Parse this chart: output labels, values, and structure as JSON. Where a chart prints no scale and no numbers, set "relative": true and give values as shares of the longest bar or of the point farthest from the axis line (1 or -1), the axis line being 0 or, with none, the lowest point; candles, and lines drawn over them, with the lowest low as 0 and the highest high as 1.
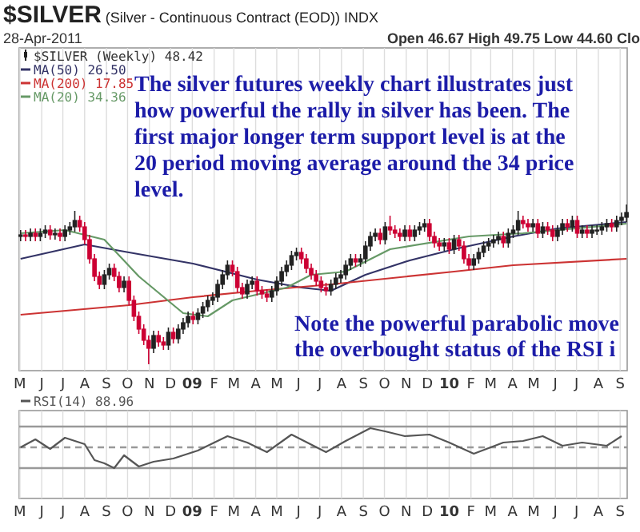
{
  "chart_data": [
    {
      "type": "candlestick",
      "title": "$SILVER (Silver - Continuous Contract (EOD)) INDX",
      "subtitle": "28-Apr-2011",
      "annotations": [
        "Open 46.67 High 49.75 Low 44.60 Clo",
        "The silver futures weekly chart illustrates just\nhow powerful the rally in silver has been. The\nfirst major longer term support level is at the\n20 period moving average around the 34 price\nlevel.",
        "Note the powerful parabolic move\nthe overbought status of the RSI i"
      ],
      "relative": true,
      "grid": "x",
      "legend": "top left",
      "xlim": [
        "2008-04-30",
        "2010-09-11"
      ],
      "xticks": [
        {
          "value": "2008-05-01",
          "label": "M"
        },
        {
          "value": "2008-06-01",
          "label": "J"
        },
        {
          "value": "2008-07-01",
          "label": "J"
        },
        {
          "value": "2008-08-01",
          "label": "A"
        },
        {
          "value": "2008-09-01",
          "label": "S"
        },
        {
          "value": "2008-10-01",
          "label": "O"
        },
        {
          "value": "2008-11-01",
          "label": "N"
        },
        {
          "value": "2008-12-01",
          "label": "D"
        },
        {
          "value": "2009-01-01",
          "label": "09"
        },
        {
          "value": "2009-02-01",
          "label": "F"
        },
        {
          "value": "2009-03-01",
          "label": "M"
        },
        {
          "value": "2009-04-01",
          "label": "A"
        },
        {
          "value": "2009-05-01",
          "label": "M"
        },
        {
          "value": "2009-06-01",
          "label": "J"
        },
        {
          "value": "2009-07-01",
          "label": "J"
        },
        {
          "value": "2009-08-01",
          "label": "A"
        },
        {
          "value": "2009-09-01",
          "label": "S"
        },
        {
          "value": "2009-10-01",
          "label": "O"
        },
        {
          "value": "2009-11-01",
          "label": "N"
        },
        {
          "value": "2009-12-01",
          "label": "D"
        },
        {
          "value": "2010-01-01",
          "label": "10"
        },
        {
          "value": "2010-02-01",
          "label": "F"
        },
        {
          "value": "2010-03-01",
          "label": "M"
        },
        {
          "value": "2010-04-01",
          "label": "A"
        },
        {
          "value": "2010-05-01",
          "label": "M"
        },
        {
          "value": "2010-06-01",
          "label": "J"
        },
        {
          "value": "2010-07-01",
          "label": "J"
        },
        {
          "value": "2010-08-01",
          "label": "A"
        },
        {
          "value": "2010-09-01",
          "label": "S"
        }
      ],
      "series": [
        {
          "type": "candlestick",
          "name": "$SILVER (Weekly) 48.42",
          "colors": [
            "#222222",
            "#cc0033",
            "#222222",
            "#cc0033",
            "#222222",
            "#222222",
            "#cc0033",
            "#222222",
            "#cc0033",
            "#222222",
            "#222222",
            "#222222",
            "#cc0033",
            "#cc0033",
            "#cc0033",
            "#cc0033",
            "#cc0033",
            "#222222",
            "#222222",
            "#cc0033",
            "#cc0033",
            "#222222",
            "#cc0033",
            "#cc0033",
            "#cc0033",
            "#cc0033",
            "#cc0033",
            "#222222",
            "#cc0033",
            "#cc0033",
            "#222222",
            "#cc0033",
            "#222222",
            "#222222",
            "#222222",
            "#cc0033",
            "#222222",
            "#222222",
            "#222222",
            "#222222",
            "#222222",
            "#222222",
            "#222222",
            "#cc0033",
            "#cc0033",
            "#cc0033",
            "#222222",
            "#222222",
            "#cc0033",
            "#cc0033",
            "#cc0033",
            "#222222",
            "#222222",
            "#222222",
            "#222222",
            "#222222",
            "#222222",
            "#cc0033",
            "#cc0033",
            "#cc0033",
            "#cc0033",
            "#cc0033",
            "#cc0033",
            "#222222",
            "#222222",
            "#222222",
            "#222222",
            "#222222",
            "#cc0033",
            "#222222",
            "#222222",
            "#222222",
            "#222222",
            "#cc0033",
            "#222222",
            "#cc0033",
            "#cc0033",
            "#cc0033",
            "#222222",
            "#cc0033",
            "#222222",
            "#222222",
            "#222222",
            "#cc0033",
            "#cc0033",
            "#cc0033",
            "#222222",
            "#cc0033",
            "#222222",
            "#cc0033",
            "#cc0033",
            "#cc0033",
            "#222222",
            "#222222",
            "#222222",
            "#222222",
            "#222222",
            "#222222",
            "#cc0033",
            "#222222",
            "#222222",
            "#222222",
            "#cc0033",
            "#cc0033",
            "#222222",
            "#cc0033",
            "#222222",
            "#cc0033",
            "#cc0033",
            "#222222",
            "#222222",
            "#cc0033",
            "#222222",
            "#cc0033",
            "#222222",
            "#cc0033",
            "#222222",
            "#222222",
            "#222222",
            "#222222",
            "#cc0033",
            "#222222",
            "#222222",
            "#222222"
          ],
          "x": [
            "2008-05-02",
            "2008-05-09",
            "2008-05-16",
            "2008-05-23",
            "2008-05-30",
            "2008-06-06",
            "2008-06-13",
            "2008-06-20",
            "2008-06-27",
            "2008-07-04",
            "2008-07-11",
            "2008-07-18",
            "2008-07-25",
            "2008-08-01",
            "2008-08-08",
            "2008-08-15",
            "2008-08-22",
            "2008-08-29",
            "2008-09-05",
            "2008-09-12",
            "2008-09-19",
            "2008-09-26",
            "2008-10-03",
            "2008-10-10",
            "2008-10-17",
            "2008-10-24",
            "2008-10-31",
            "2008-11-07",
            "2008-11-14",
            "2008-11-21",
            "2008-11-28",
            "2008-12-05",
            "2008-12-12",
            "2008-12-19",
            "2008-12-26",
            "2009-01-02",
            "2009-01-09",
            "2009-01-16",
            "2009-01-23",
            "2009-01-30",
            "2009-02-06",
            "2009-02-13",
            "2009-02-20",
            "2009-02-27",
            "2009-03-06",
            "2009-03-13",
            "2009-03-20",
            "2009-03-27",
            "2009-04-03",
            "2009-04-10",
            "2009-04-17",
            "2009-04-24",
            "2009-05-01",
            "2009-05-08",
            "2009-05-15",
            "2009-05-22",
            "2009-05-29",
            "2009-06-05",
            "2009-06-12",
            "2009-06-19",
            "2009-06-26",
            "2009-07-03",
            "2009-07-10",
            "2009-07-17",
            "2009-07-24",
            "2009-07-31",
            "2009-08-07",
            "2009-08-14",
            "2009-08-21",
            "2009-08-28",
            "2009-09-04",
            "2009-09-11",
            "2009-09-18",
            "2009-09-25",
            "2009-10-02",
            "2009-10-09",
            "2009-10-16",
            "2009-10-23",
            "2009-10-30",
            "2009-11-06",
            "2009-11-13",
            "2009-11-20",
            "2009-11-27",
            "2009-12-04",
            "2009-12-11",
            "2009-12-18",
            "2009-12-25",
            "2010-01-01",
            "2010-01-08",
            "2010-01-15",
            "2010-01-22",
            "2010-01-29",
            "2010-02-05",
            "2010-02-12",
            "2010-02-19",
            "2010-02-26",
            "2010-03-05",
            "2010-03-12",
            "2010-03-19",
            "2010-03-26",
            "2010-04-02",
            "2010-04-09",
            "2010-04-16",
            "2010-04-23",
            "2010-04-30",
            "2010-05-07",
            "2010-05-14",
            "2010-05-21",
            "2010-05-28",
            "2010-06-04",
            "2010-06-11",
            "2010-06-18",
            "2010-06-25",
            "2010-07-02",
            "2010-07-09",
            "2010-07-16",
            "2010-07-23",
            "2010-07-30",
            "2010-08-06",
            "2010-08-13",
            "2010-08-20",
            "2010-08-27",
            "2010-09-03",
            "2010-09-10"
          ],
          "ohlc": [
            [
              0.8,
              0.84,
              0.77,
              0.81
            ],
            [
              0.81,
              0.84,
              0.77,
              0.8
            ],
            [
              0.8,
              0.85,
              0.77,
              0.82
            ],
            [
              0.82,
              0.85,
              0.77,
              0.8
            ],
            [
              0.8,
              0.85,
              0.77,
              0.82
            ],
            [
              0.82,
              0.87,
              0.79,
              0.84
            ],
            [
              0.84,
              0.87,
              0.78,
              0.81
            ],
            [
              0.81,
              0.85,
              0.78,
              0.82
            ],
            [
              0.82,
              0.85,
              0.77,
              0.8
            ],
            [
              0.8,
              0.87,
              0.77,
              0.84
            ],
            [
              0.84,
              0.89,
              0.81,
              0.86
            ],
            [
              0.86,
              0.96,
              0.83,
              0.9
            ],
            [
              0.9,
              0.93,
              0.83,
              0.86
            ],
            [
              0.86,
              0.89,
              0.75,
              0.78
            ],
            [
              0.78,
              0.81,
              0.63,
              0.66
            ],
            [
              0.66,
              0.69,
              0.52,
              0.55
            ],
            [
              0.55,
              0.58,
              0.47,
              0.5
            ],
            [
              0.5,
              0.59,
              0.47,
              0.56
            ],
            [
              0.56,
              0.63,
              0.53,
              0.6
            ],
            [
              0.6,
              0.63,
              0.52,
              0.55
            ],
            [
              0.55,
              0.58,
              0.45,
              0.48
            ],
            [
              0.48,
              0.55,
              0.45,
              0.52
            ],
            [
              0.52,
              0.55,
              0.37,
              0.4
            ],
            [
              0.4,
              0.43,
              0.27,
              0.3
            ],
            [
              0.3,
              0.33,
              0.19,
              0.22
            ],
            [
              0.22,
              0.25,
              0.12,
              0.15
            ],
            [
              0.15,
              0.18,
              0,
              0.1
            ],
            [
              0.1,
              0.21,
              0.07,
              0.18
            ],
            [
              0.18,
              0.21,
              0.11,
              0.14
            ],
            [
              0.14,
              0.17,
              0.09,
              0.12
            ],
            [
              0.12,
              0.23,
              0.09,
              0.2
            ],
            [
              0.2,
              0.23,
              0.13,
              0.16
            ],
            [
              0.16,
              0.25,
              0.13,
              0.22
            ],
            [
              0.22,
              0.29,
              0.19,
              0.26
            ],
            [
              0.26,
              0.33,
              0.23,
              0.3
            ],
            [
              0.3,
              0.33,
              0.25,
              0.28
            ],
            [
              0.28,
              0.35,
              0.25,
              0.32
            ],
            [
              0.32,
              0.39,
              0.29,
              0.36
            ],
            [
              0.36,
              0.43,
              0.33,
              0.4
            ],
            [
              0.4,
              0.45,
              0.37,
              0.42
            ],
            [
              0.42,
              0.53,
              0.39,
              0.5
            ],
            [
              0.5,
              0.59,
              0.47,
              0.56
            ],
            [
              0.56,
              0.65,
              0.53,
              0.62
            ],
            [
              0.62,
              0.65,
              0.55,
              0.58
            ],
            [
              0.58,
              0.61,
              0.45,
              0.48
            ],
            [
              0.48,
              0.51,
              0.41,
              0.44
            ],
            [
              0.44,
              0.53,
              0.41,
              0.5
            ],
            [
              0.5,
              0.55,
              0.47,
              0.52
            ],
            [
              0.52,
              0.55,
              0.43,
              0.46
            ],
            [
              0.46,
              0.49,
              0.41,
              0.44
            ],
            [
              0.44,
              0.47,
              0.39,
              0.42
            ],
            [
              0.42,
              0.49,
              0.39,
              0.46
            ],
            [
              0.46,
              0.55,
              0.43,
              0.52
            ],
            [
              0.52,
              0.61,
              0.49,
              0.58
            ],
            [
              0.58,
              0.65,
              0.55,
              0.62
            ],
            [
              0.62,
              0.71,
              0.59,
              0.68
            ],
            [
              0.68,
              0.73,
              0.65,
              0.7
            ],
            [
              0.7,
              0.73,
              0.63,
              0.66
            ],
            [
              0.66,
              0.69,
              0.57,
              0.6
            ],
            [
              0.6,
              0.63,
              0.53,
              0.56
            ],
            [
              0.56,
              0.59,
              0.49,
              0.52
            ],
            [
              0.52,
              0.55,
              0.45,
              0.48
            ],
            [
              0.48,
              0.51,
              0.43,
              0.46
            ],
            [
              0.46,
              0.53,
              0.43,
              0.5
            ],
            [
              0.5,
              0.57,
              0.47,
              0.54
            ],
            [
              0.54,
              0.59,
              0.51,
              0.56
            ],
            [
              0.56,
              0.65,
              0.53,
              0.62
            ],
            [
              0.62,
              0.69,
              0.59,
              0.66
            ],
            [
              0.66,
              0.69,
              0.61,
              0.64
            ],
            [
              0.64,
              0.69,
              0.61,
              0.66
            ],
            [
              0.66,
              0.77,
              0.63,
              0.74
            ],
            [
              0.74,
              0.83,
              0.71,
              0.8
            ],
            [
              0.8,
              0.85,
              0.77,
              0.82
            ],
            [
              0.82,
              0.85,
              0.75,
              0.78
            ],
            [
              0.78,
              0.89,
              0.75,
              0.86
            ],
            [
              0.86,
              0.93,
              0.81,
              0.84
            ],
            [
              0.84,
              0.87,
              0.79,
              0.82
            ],
            [
              0.82,
              0.85,
              0.77,
              0.8
            ],
            [
              0.8,
              0.87,
              0.77,
              0.84
            ],
            [
              0.84,
              0.87,
              0.77,
              0.8
            ],
            [
              0.8,
              0.87,
              0.77,
              0.84
            ],
            [
              0.84,
              0.89,
              0.81,
              0.86
            ],
            [
              0.86,
              0.91,
              0.83,
              0.88
            ],
            [
              0.88,
              0.91,
              0.77,
              0.8
            ],
            [
              0.8,
              0.83,
              0.73,
              0.76
            ],
            [
              0.76,
              0.79,
              0.71,
              0.74
            ],
            [
              0.74,
              0.79,
              0.71,
              0.76
            ],
            [
              0.76,
              0.79,
              0.69,
              0.72
            ],
            [
              0.72,
              0.81,
              0.69,
              0.78
            ],
            [
              0.78,
              0.81,
              0.71,
              0.74
            ],
            [
              0.74,
              0.77,
              0.63,
              0.66
            ],
            [
              0.66,
              0.69,
              0.59,
              0.62
            ],
            [
              0.62,
              0.69,
              0.59,
              0.66
            ],
            [
              0.66,
              0.73,
              0.63,
              0.7
            ],
            [
              0.7,
              0.77,
              0.67,
              0.74
            ],
            [
              0.74,
              0.79,
              0.71,
              0.76
            ],
            [
              0.76,
              0.81,
              0.73,
              0.78
            ],
            [
              0.78,
              0.83,
              0.75,
              0.8
            ],
            [
              0.8,
              0.83,
              0.73,
              0.76
            ],
            [
              0.76,
              0.85,
              0.73,
              0.82
            ],
            [
              0.82,
              0.87,
              0.79,
              0.84
            ],
            [
              0.84,
              0.96,
              0.81,
              0.9
            ],
            [
              0.9,
              0.93,
              0.85,
              0.88
            ],
            [
              0.88,
              0.91,
              0.83,
              0.86
            ],
            [
              0.86,
              0.91,
              0.83,
              0.88
            ],
            [
              0.88,
              0.91,
              0.79,
              0.82
            ],
            [
              0.82,
              0.89,
              0.79,
              0.86
            ],
            [
              0.86,
              0.89,
              0.81,
              0.84
            ],
            [
              0.84,
              0.87,
              0.77,
              0.8
            ],
            [
              0.8,
              0.87,
              0.77,
              0.84
            ],
            [
              0.84,
              0.91,
              0.81,
              0.88
            ],
            [
              0.88,
              0.91,
              0.83,
              0.86
            ],
            [
              0.86,
              0.93,
              0.83,
              0.9
            ],
            [
              0.9,
              0.93,
              0.79,
              0.82
            ],
            [
              0.82,
              0.87,
              0.79,
              0.84
            ],
            [
              0.84,
              0.87,
              0.79,
              0.82
            ],
            [
              0.82,
              0.87,
              0.79,
              0.84
            ],
            [
              0.84,
              0.87,
              0.81,
              0.84
            ],
            [
              0.84,
              0.89,
              0.81,
              0.86
            ],
            [
              0.86,
              0.91,
              0.83,
              0.88
            ],
            [
              0.88,
              0.91,
              0.83,
              0.86
            ],
            [
              0.86,
              0.93,
              0.83,
              0.9
            ],
            [
              0.9,
              0.95,
              0.87,
              0.92
            ],
            [
              0.92,
              1,
              0.89,
              0.95
            ]
          ]
        },
        {
          "type": "line",
          "name": "MA(50) 26.50",
          "color": "#333366",
          "x": [
            "2008-05-02",
            "2008-08-01",
            "2008-10-03",
            "2009-01-02",
            "2009-04-03",
            "2009-06-05",
            "2009-07-17",
            "2009-09-04",
            "2009-11-06",
            "2010-01-08",
            "2010-04-02",
            "2010-06-04",
            "2010-09-10"
          ],
          "values": [
            0.66,
            0.75,
            0.7,
            0.63,
            0.53,
            0.48,
            0.46,
            0.56,
            0.65,
            0.72,
            0.8,
            0.85,
            0.89
          ]
        },
        {
          "type": "line",
          "name": "MA(200) 17.85",
          "color": "#cc3333",
          "x": [
            "2008-05-02",
            "2008-10-03",
            "2009-01-02",
            "2009-04-03",
            "2009-07-17",
            "2010-01-08",
            "2010-04-02",
            "2010-09-10"
          ],
          "values": [
            0.31,
            0.37,
            0.42,
            0.46,
            0.5,
            0.58,
            0.62,
            0.66
          ]
        },
        {
          "type": "line",
          "name": "MA(20) 34.36",
          "color": "#669966",
          "x": [
            "2008-05-02",
            "2008-07-04",
            "2008-08-29",
            "2008-10-17",
            "2008-12-19",
            "2009-01-23",
            "2009-02-27",
            "2009-05-15",
            "2009-06-19",
            "2009-08-07",
            "2009-10-09",
            "2010-01-29",
            "2010-04-16",
            "2010-09-10"
          ],
          "values": [
            0.82,
            0.84,
            0.78,
            0.55,
            0.32,
            0.3,
            0.4,
            0.48,
            0.56,
            0.58,
            0.72,
            0.8,
            0.82,
            0.88
          ]
        }
      ]
    },
    {
      "type": "line",
      "relative": true,
      "grid": "x",
      "legend": "top left",
      "xlim": [
        "2008-04-30",
        "2010-09-11"
      ],
      "xticks": [
        {
          "value": "2008-05-01",
          "label": "M"
        },
        {
          "value": "2008-06-01",
          "label": "J"
        },
        {
          "value": "2008-07-01",
          "label": "J"
        },
        {
          "value": "2008-08-01",
          "label": "A"
        },
        {
          "value": "2008-09-01",
          "label": "S"
        },
        {
          "value": "2008-10-01",
          "label": "O"
        },
        {
          "value": "2008-11-01",
          "label": "N"
        },
        {
          "value": "2008-12-01",
          "label": "D"
        },
        {
          "value": "2009-01-01",
          "label": "09"
        },
        {
          "value": "2009-02-01",
          "label": "F"
        },
        {
          "value": "2009-03-01",
          "label": "M"
        },
        {
          "value": "2009-04-01",
          "label": "A"
        },
        {
          "value": "2009-05-01",
          "label": "M"
        },
        {
          "value": "2009-06-01",
          "label": "J"
        },
        {
          "value": "2009-07-01",
          "label": "J"
        },
        {
          "value": "2009-08-01",
          "label": "A"
        },
        {
          "value": "2009-09-01",
          "label": "S"
        },
        {
          "value": "2009-10-01",
          "label": "O"
        },
        {
          "value": "2009-11-01",
          "label": "N"
        },
        {
          "value": "2009-12-01",
          "label": "D"
        },
        {
          "value": "2010-01-01",
          "label": "10"
        },
        {
          "value": "2010-02-01",
          "label": "F"
        },
        {
          "value": "2010-03-01",
          "label": "M"
        },
        {
          "value": "2010-04-01",
          "label": "A"
        },
        {
          "value": "2010-05-01",
          "label": "M"
        },
        {
          "value": "2010-06-01",
          "label": "J"
        },
        {
          "value": "2010-07-01",
          "label": "J"
        },
        {
          "value": "2010-08-01",
          "label": "A"
        },
        {
          "value": "2010-09-01",
          "label": "S"
        }
      ],
      "ref_lines": [
        {
          "axis": "y",
          "value": 1.04,
          "color": "#999999"
        },
        {
          "axis": "y",
          "value": 0.52,
          "color": "#999999",
          "line_style": "dashed"
        },
        {
          "axis": "y",
          "value": 0,
          "color": "#999999"
        }
      ],
      "series": [
        {
          "name": "RSI(14) 88.96",
          "color": "#555555",
          "x": [
            "2008-05-02",
            "2008-05-23",
            "2008-06-13",
            "2008-07-04",
            "2008-08-01",
            "2008-08-15",
            "2008-08-29",
            "2008-09-12",
            "2008-09-26",
            "2008-10-17",
            "2008-11-07",
            "2008-12-05",
            "2009-01-09",
            "2009-02-20",
            "2009-03-20",
            "2009-04-17",
            "2009-05-22",
            "2009-07-10",
            "2009-08-07",
            "2009-09-11",
            "2009-10-02",
            "2009-10-30",
            "2009-12-04",
            "2010-01-01",
            "2010-02-05",
            "2010-03-19",
            "2010-04-16",
            "2010-05-14",
            "2010-06-11",
            "2010-07-09",
            "2010-08-13",
            "2010-09-03"
          ],
          "values": [
            0.52,
            0.72,
            0.48,
            0.76,
            0.6,
            0.2,
            0.12,
            0,
            0.32,
            0.04,
            0.16,
            0.24,
            0.44,
            0.8,
            0.64,
            0.4,
            0.84,
            0.4,
            0.68,
            1,
            0.92,
            0.8,
            0.84,
            0.64,
            0.36,
            0.64,
            0.68,
            0.8,
            0.56,
            0.64,
            0.56,
            0.8
          ]
        }
      ]
    }
  ]
}
